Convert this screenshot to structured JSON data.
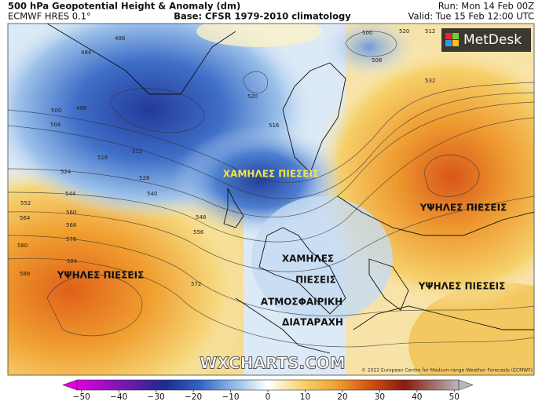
{
  "header": {
    "title": "500 hPa Geopotential Height & Anomaly (dm)",
    "model": "ECMWF HRES 0.1°",
    "base": "Base: CFSR 1979-2010 climatology",
    "run": "Run: Mon 14 Feb 00Z",
    "valid": "Valid: Tue 15 Feb 12:00 UTC"
  },
  "logo": "MetDesk",
  "annotations": [
    "ΧΑΜΗΛΕΣ ΠΙΕΣΕΙΣ",
    "ΥΨΗΛΕΣ ΠΙΕΣΕΙΣ",
    "ΥΨΗΛΕΣ ΠΙΕΣΕΙΣ",
    "ΧΑΜΗΛΕΣ",
    "ΠΙΕΣΕΙΣ",
    "ΑΤΜΟΣΦΑΙΡΙΚΗ",
    "ΔΙΑΤΑΡΑΧΗ",
    "ΥΨΗΛΕΣ ΠΙΕΣΕΙΣ"
  ],
  "contour_labels": [
    "484",
    "488",
    "496",
    "500",
    "504",
    "512",
    "516",
    "520",
    "524",
    "528",
    "532",
    "540",
    "544",
    "548",
    "552",
    "556",
    "560",
    "564",
    "568",
    "572",
    "576",
    "580",
    "584",
    "588",
    "500",
    "508",
    "516",
    "512",
    "520"
  ],
  "watermark": "WXCHARTS.COM",
  "copyright": "© 2022 European Centre for Medium-range Weather Forecasts (ECMWF)",
  "colorbar": {
    "lim": [
      -55,
      55
    ],
    "ticks": [
      {
        "value": -50,
        "label": "−50"
      },
      {
        "value": -40,
        "label": "−40"
      },
      {
        "value": -30,
        "label": "−30"
      },
      {
        "value": -20,
        "label": "−20"
      },
      {
        "value": -10,
        "label": "−10"
      },
      0,
      10,
      20,
      30,
      40,
      50
    ]
  }
}
